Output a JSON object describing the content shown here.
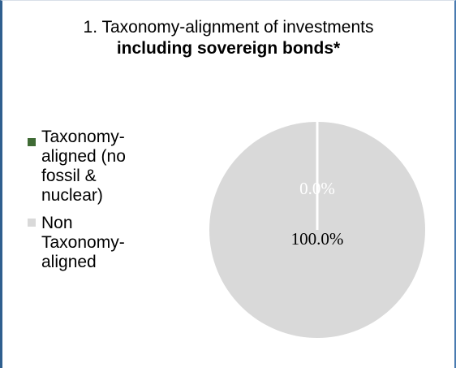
{
  "chart_data": {
    "type": "pie",
    "title": "1. Taxonomy-alignment of investments",
    "subtitle": "including sovereign bonds*",
    "legend_position": "left",
    "slices": [
      {
        "label": "Taxonomy-aligned (no fossil & nuclear)",
        "value": 0.0,
        "value_label": "0.0%",
        "color": "#3f6b35",
        "label_color": "#ffffff"
      },
      {
        "label": "Non Taxonomy-aligned",
        "value": 100.0,
        "value_label": "100.0%",
        "color": "#d9d9d9",
        "label_color": "#000000"
      }
    ]
  }
}
